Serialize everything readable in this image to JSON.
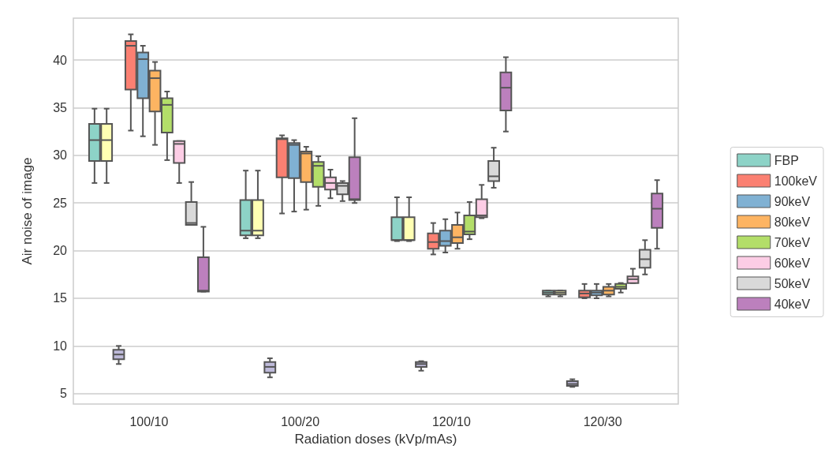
{
  "chart_data": {
    "type": "box",
    "xlabel": "Radiation doses (kVp/mAs)",
    "ylabel": "Air noise of image",
    "categories": [
      "100/10",
      "100/20",
      "120/10",
      "120/30"
    ],
    "ylim": [
      3.9,
      44.4
    ],
    "yticks": [
      5,
      10,
      15,
      20,
      25,
      30,
      35,
      40
    ],
    "grid": "y",
    "legend": "right",
    "series": [
      {
        "name": "FBP",
        "color": "#8dd3c7",
        "boxes": [
          {
            "low": 27.1,
            "q1": 29.4,
            "median": 31.6,
            "q3": 33.3,
            "high": 34.9
          },
          {
            "low": 21.3,
            "q1": 21.6,
            "median": 22.1,
            "q3": 25.3,
            "high": 28.4
          },
          {
            "low": 21.0,
            "q1": 21.1,
            "median": 21.1,
            "q3": 23.5,
            "high": 25.6
          },
          {
            "low": 15.2,
            "q1": 15.4,
            "median": 15.6,
            "q3": 15.8,
            "high": 15.8
          }
        ]
      },
      {
        "color": "#ffffb3",
        "boxes": [
          {
            "low": 27.1,
            "q1": 29.4,
            "median": 31.6,
            "q3": 33.3,
            "high": 34.9
          },
          {
            "low": 21.3,
            "q1": 21.6,
            "median": 22.1,
            "q3": 25.3,
            "high": 28.4
          },
          {
            "low": 21.0,
            "q1": 21.1,
            "median": 21.1,
            "q3": 23.5,
            "high": 25.6
          },
          {
            "low": 15.2,
            "q1": 15.4,
            "median": 15.6,
            "q3": 15.8,
            "high": 15.8
          }
        ]
      },
      {
        "color": "#bebada",
        "boxes": [
          {
            "low": 8.1,
            "q1": 8.6,
            "median": 9.1,
            "q3": 9.6,
            "high": 10.0
          },
          {
            "low": 6.7,
            "q1": 7.2,
            "median": 7.8,
            "q3": 8.3,
            "high": 8.7
          },
          {
            "low": 7.4,
            "q1": 7.8,
            "median": 8.1,
            "q3": 8.3,
            "high": 8.4
          },
          {
            "low": 5.7,
            "q1": 5.8,
            "median": 6.0,
            "q3": 6.3,
            "high": 6.5
          }
        ]
      },
      {
        "name": "100keV",
        "color": "#fb8072",
        "boxes": [
          {
            "low": 32.6,
            "q1": 36.9,
            "median": 41.5,
            "q3": 42.0,
            "high": 42.7
          },
          {
            "low": 23.9,
            "q1": 27.7,
            "median": 31.7,
            "q3": 31.8,
            "high": 32.1
          },
          {
            "low": 19.6,
            "q1": 20.2,
            "median": 20.9,
            "q3": 21.8,
            "high": 22.9
          },
          {
            "low": 15.0,
            "q1": 15.1,
            "median": 15.5,
            "q3": 15.8,
            "high": 16.5
          }
        ]
      },
      {
        "name": "90keV",
        "color": "#80b1d3",
        "boxes": [
          {
            "low": 32.0,
            "q1": 36.0,
            "median": 40.1,
            "q3": 40.8,
            "high": 41.5
          },
          {
            "low": 24.1,
            "q1": 27.6,
            "median": 31.1,
            "q3": 31.3,
            "high": 31.6
          },
          {
            "low": 19.8,
            "q1": 20.5,
            "median": 21.0,
            "q3": 22.1,
            "high": 23.3
          },
          {
            "low": 15.0,
            "q1": 15.3,
            "median": 15.6,
            "q3": 15.8,
            "high": 16.5
          }
        ]
      },
      {
        "name": "80keV",
        "color": "#fdb462",
        "boxes": [
          {
            "low": 31.1,
            "q1": 34.6,
            "median": 38.1,
            "q3": 38.9,
            "high": 39.8
          },
          {
            "low": 24.3,
            "q1": 27.2,
            "median": 30.2,
            "q3": 30.4,
            "high": 30.9
          },
          {
            "low": 20.2,
            "q1": 20.8,
            "median": 21.4,
            "q3": 22.7,
            "high": 24.0
          },
          {
            "low": 15.2,
            "q1": 15.4,
            "median": 15.8,
            "q3": 16.2,
            "high": 16.5
          }
        ]
      },
      {
        "name": "70keV",
        "color": "#b3de69",
        "boxes": [
          {
            "low": 29.5,
            "q1": 32.4,
            "median": 35.3,
            "q3": 36.0,
            "high": 36.7
          },
          {
            "low": 24.7,
            "q1": 26.7,
            "median": 28.9,
            "q3": 29.3,
            "high": 29.9
          },
          {
            "low": 21.2,
            "q1": 21.7,
            "median": 22.0,
            "q3": 23.7,
            "high": 25.1
          },
          {
            "low": 15.6,
            "q1": 16.0,
            "median": 16.2,
            "q3": 16.5,
            "high": 16.6
          }
        ]
      },
      {
        "name": "60keV",
        "color": "#fccde5",
        "boxes": [
          {
            "low": 27.1,
            "q1": 29.2,
            "median": 31.2,
            "q3": 31.5,
            "high": 31.5
          },
          {
            "low": 25.5,
            "q1": 26.4,
            "median": 27.1,
            "q3": 27.7,
            "high": 28.5
          },
          {
            "low": 23.4,
            "q1": 23.5,
            "median": 23.7,
            "q3": 25.4,
            "high": 26.9
          },
          {
            "low": 16.6,
            "q1": 16.6,
            "median": 17.0,
            "q3": 17.3,
            "high": 18.1
          }
        ]
      },
      {
        "name": "50keV",
        "color": "#d9d9d9",
        "boxes": [
          {
            "low": 22.7,
            "q1": 22.7,
            "median": 22.9,
            "q3": 25.1,
            "high": 27.2
          },
          {
            "low": 25.2,
            "q1": 25.9,
            "median": 26.8,
            "q3": 27.1,
            "high": 27.3
          },
          {
            "low": 26.6,
            "q1": 27.3,
            "median": 27.8,
            "q3": 29.4,
            "high": 30.8
          },
          {
            "low": 17.5,
            "q1": 18.2,
            "median": 19.1,
            "q3": 20.1,
            "high": 21.1
          }
        ]
      },
      {
        "name": "40keV",
        "color": "#bc80bd",
        "boxes": [
          {
            "low": 15.7,
            "q1": 15.7,
            "median": 15.8,
            "q3": 19.3,
            "high": 22.5
          },
          {
            "low": 25.0,
            "q1": 25.3,
            "median": 25.4,
            "q3": 29.8,
            "high": 33.9
          },
          {
            "low": 32.5,
            "q1": 34.7,
            "median": 37.1,
            "q3": 38.7,
            "high": 40.3
          },
          {
            "low": 20.2,
            "q1": 22.4,
            "median": 24.4,
            "q3": 26.0,
            "high": 27.4
          }
        ]
      }
    ]
  }
}
